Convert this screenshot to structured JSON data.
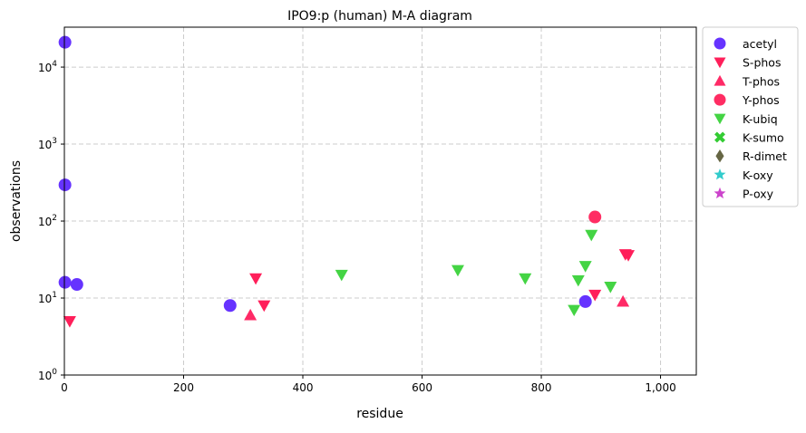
{
  "chart_data": {
    "type": "scatter",
    "title": "IPO9:p (human) M-A diagram",
    "xlabel": "residue",
    "ylabel": "observations",
    "xlim": [
      0,
      1060
    ],
    "ylim": [
      1,
      33000
    ],
    "yscale": "log",
    "grid": true,
    "legend_placement": "outside-top-right",
    "x_ticks": [
      {
        "v": 0,
        "label": "0"
      },
      {
        "v": 200,
        "label": "200"
      },
      {
        "v": 400,
        "label": "400"
      },
      {
        "v": 600,
        "label": "600"
      },
      {
        "v": 800,
        "label": "800"
      },
      {
        "v": 1000,
        "label": "1,000"
      }
    ],
    "y_ticks": [
      {
        "v": 1,
        "label": "10^0",
        "exp": "0"
      },
      {
        "v": 10,
        "label": "10^1",
        "exp": "1"
      },
      {
        "v": 100,
        "label": "10^2",
        "exp": "2"
      },
      {
        "v": 1000,
        "label": "10^3",
        "exp": "3"
      },
      {
        "v": 10000,
        "label": "10^4",
        "exp": "4"
      }
    ],
    "series": [
      {
        "name": "acetyl",
        "marker": "circle",
        "color": "#6633ff",
        "points": [
          [
            1,
            21000
          ],
          [
            1,
            295
          ],
          [
            1,
            16
          ],
          [
            21,
            15
          ],
          [
            278,
            8
          ],
          [
            874,
            9
          ]
        ]
      },
      {
        "name": "S-phos",
        "marker": "triangle-down",
        "color": "#ff1f5a",
        "points": [
          [
            9,
            5
          ],
          [
            321,
            18
          ],
          [
            335,
            8
          ],
          [
            890,
            11
          ],
          [
            941,
            37
          ],
          [
            946,
            36
          ]
        ]
      },
      {
        "name": "T-phos",
        "marker": "triangle-up",
        "color": "#ff2a66",
        "points": [
          [
            312,
            6
          ],
          [
            937,
            9
          ]
        ]
      },
      {
        "name": "Y-phos",
        "marker": "circle",
        "color": "#ff2d63",
        "points": [
          [
            890,
            113
          ]
        ]
      },
      {
        "name": "K-ubiq",
        "marker": "triangle-down",
        "color": "#44d444",
        "points": [
          [
            465,
            20
          ],
          [
            660,
            23
          ],
          [
            773,
            18
          ],
          [
            855,
            7
          ],
          [
            862,
            17
          ],
          [
            874,
            26
          ],
          [
            884,
            66
          ],
          [
            916,
            14
          ]
        ]
      },
      {
        "name": "K-sumo",
        "marker": "x",
        "color": "#33cc33",
        "points": []
      },
      {
        "name": "R-dimet",
        "marker": "diamond",
        "color": "#666644",
        "points": []
      },
      {
        "name": "K-oxy",
        "marker": "star",
        "color": "#33cccc",
        "points": []
      },
      {
        "name": "P-oxy",
        "marker": "star",
        "color": "#cc44cc",
        "points": []
      }
    ]
  }
}
